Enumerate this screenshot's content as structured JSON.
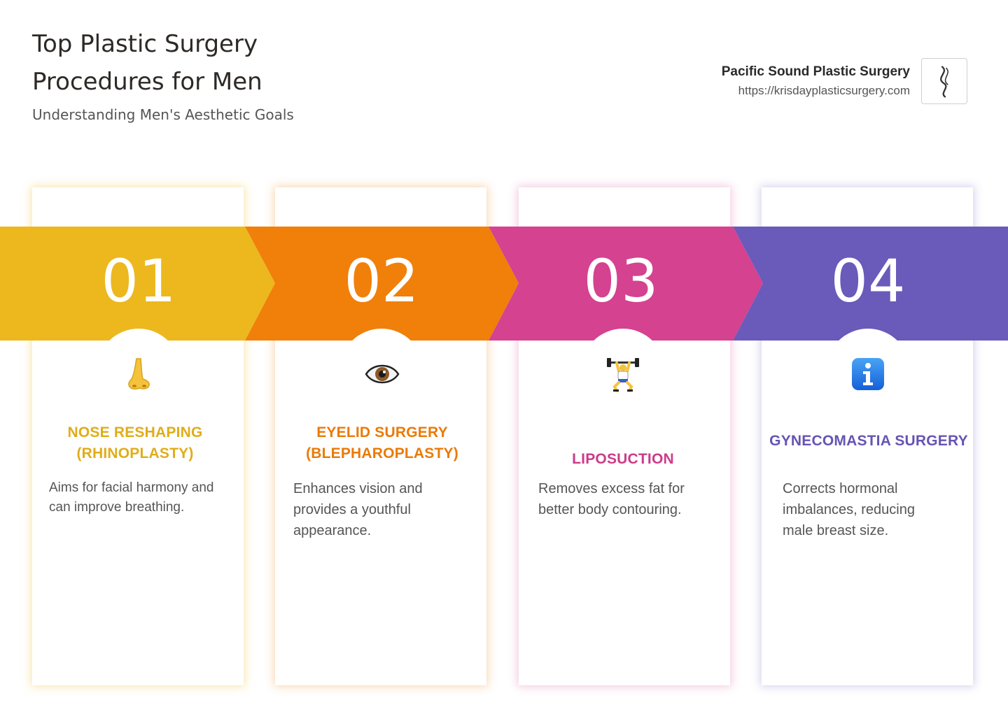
{
  "header": {
    "title": "Top Plastic Surgery Procedures for Men",
    "subtitle": "Understanding Men's Aesthetic Goals"
  },
  "brand": {
    "name": "Pacific Sound Plastic Surgery",
    "url": "https://krisdayplasticsurgery.com",
    "logo_icon": "wave-logo-icon"
  },
  "steps": [
    {
      "number": "01",
      "color": "#ecb81e",
      "icon": "nose-icon",
      "title": "NOSE RESHAPING (RHINOPLASTY)",
      "description": "Aims for facial harmony and can improve breathing."
    },
    {
      "number": "02",
      "color": "#f0800a",
      "icon": "eye-icon",
      "title": "EYELID SURGERY (BLEPHAROPLASTY)",
      "description": "Enhances vision and provides a youthful appearance."
    },
    {
      "number": "03",
      "color": "#d44290",
      "icon": "weightlifter-icon",
      "title": "LIPOSUCTION",
      "description": "Removes excess fat for better body contouring."
    },
    {
      "number": "04",
      "color": "#6a5aba",
      "icon": "information-icon",
      "title": "GYNECOMASTIA SURGERY",
      "description": "Corrects hormonal imbalances, reducing male breast size."
    }
  ]
}
